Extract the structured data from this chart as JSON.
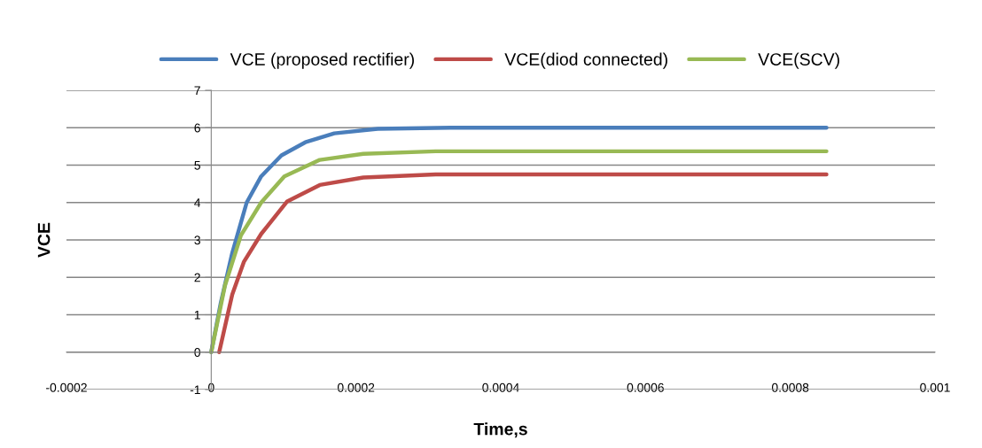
{
  "chart_data": {
    "type": "line",
    "xlabel": "Time,s",
    "ylabel": "VCE",
    "xlim": [
      -0.0002,
      0.001
    ],
    "xticks": [
      -0.0002,
      0,
      0.0002,
      0.0004,
      0.0006,
      0.0008,
      0.001
    ],
    "ylim": [
      -1,
      7
    ],
    "yticks": [
      -1,
      0,
      1,
      2,
      3,
      4,
      5,
      6,
      7
    ],
    "grid": "y",
    "legend": "top",
    "marker": "none",
    "line_style": "solid",
    "series": [
      {
        "name": "VCE (proposed rectifier)",
        "color": "#4a7ebb",
        "x": [
          0,
          1.3e-05,
          2.9e-05,
          4.9e-05,
          6.9e-05,
          9.7e-05,
          0.00013,
          0.00017,
          0.00023,
          0.00033,
          0.00085
        ],
        "values": [
          0,
          1.3,
          2.65,
          4.0,
          4.7,
          5.26,
          5.61,
          5.85,
          5.97,
          6.0,
          6.0
        ]
      },
      {
        "name": "VCE(diod connected)",
        "color": "#be4b48",
        "x": [
          1.1e-05,
          2.9e-05,
          4.5e-05,
          6.9e-05,
          0.000105,
          0.00015,
          0.00021,
          0.00031,
          0.00085
        ],
        "values": [
          0,
          1.54,
          2.41,
          3.16,
          4.03,
          4.47,
          4.67,
          4.75,
          4.75
        ]
      },
      {
        "name": "VCE(SCV)",
        "color": "#98b954",
        "x": [
          0,
          1.9e-05,
          4.1e-05,
          6.9e-05,
          0.000101,
          0.00015,
          0.00021,
          0.00031,
          0.00085
        ],
        "values": [
          0,
          1.78,
          3.12,
          4.0,
          4.7,
          5.14,
          5.3,
          5.37,
          5.37
        ]
      }
    ]
  }
}
